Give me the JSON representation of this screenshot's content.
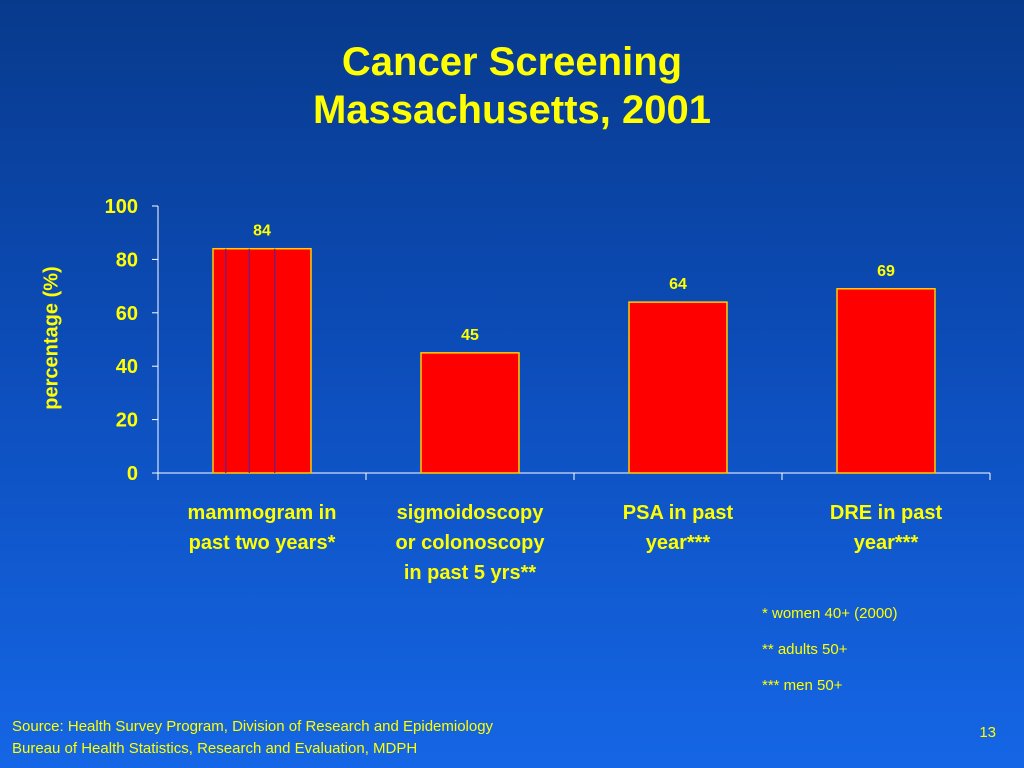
{
  "slide": {
    "title_line1": "Cancer Screening",
    "title_line2": "Massachusetts, 2001",
    "footnotes": [
      "* women 40+ (2000)",
      "** adults 50+",
      "*** men 50+"
    ],
    "source_line1": "Source: Health Survey Program, Division of Research and Epidemiology",
    "source_line2": "Bureau of Health Statistics, Research and Evaluation, MDPH",
    "page_number": "13"
  },
  "chart_data": {
    "type": "bar",
    "ylabel": "percentage (%)",
    "categories": [
      [
        "mammogram in",
        "past two years*"
      ],
      [
        "sigmoidoscopy",
        "or colonoscopy",
        "in past 5 yrs**"
      ],
      [
        "PSA in past",
        "year***"
      ],
      [
        "DRE in past",
        "year***"
      ]
    ],
    "values": [
      84,
      45,
      64,
      69
    ],
    "data_labels": [
      "84",
      "45",
      "64",
      "69"
    ],
    "ylim": [
      0,
      100
    ],
    "yticks": [
      0,
      20,
      40,
      60,
      80,
      100
    ],
    "colors": {
      "bar_fill": "#ff0000",
      "bar_outline": "#ffcc00",
      "bar_stripe": "#6a1f8c",
      "axis": "#ffffff",
      "text": "#ffff00"
    },
    "first_bar_striped": true,
    "grid": false
  }
}
